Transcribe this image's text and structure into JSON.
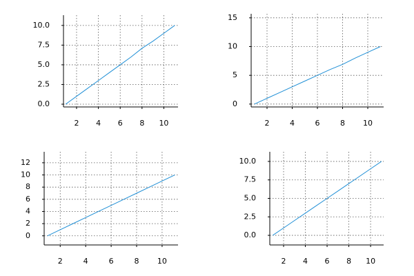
{
  "chart_data": [
    {
      "type": "line",
      "x": [
        1,
        2,
        3,
        4,
        5,
        6,
        7,
        8,
        9,
        10,
        11
      ],
      "series": [
        {
          "color": "#1f8fd6",
          "values": [
            0,
            1,
            2,
            3,
            4,
            5,
            6,
            7.1,
            8,
            9,
            10
          ]
        }
      ],
      "xlim": [
        0.8,
        11.3
      ],
      "ylim": [
        -0.35,
        11.3
      ],
      "xticks": [
        2,
        4,
        6,
        8,
        10
      ],
      "yticks": [
        {
          "value": 0,
          "label": "0.0"
        },
        {
          "value": 2.5,
          "label": "2.5"
        },
        {
          "value": 5,
          "label": "5.0"
        },
        {
          "value": 7.5,
          "label": "7.5"
        },
        {
          "value": 10,
          "label": "10.0"
        }
      ],
      "grid": true
    },
    {
      "type": "line",
      "x": [
        1,
        2,
        3,
        4,
        5,
        6,
        7,
        8,
        9,
        10,
        11
      ],
      "series": [
        {
          "color": "#1f8fd6",
          "values": [
            0,
            1,
            2,
            3,
            4,
            5,
            6,
            6.9,
            8,
            9,
            10
          ]
        }
      ],
      "xlim": [
        0.74,
        11.26
      ],
      "ylim": [
        -0.5,
        15.7
      ],
      "xticks": [
        2,
        4,
        6,
        8,
        10
      ],
      "yticks": [
        0,
        5,
        10,
        15
      ],
      "grid": true
    },
    {
      "type": "line",
      "x": [
        1,
        2,
        3,
        4,
        5,
        6,
        7,
        8,
        9,
        10,
        11
      ],
      "series": [
        {
          "color": "#1f8fd6",
          "values": [
            0,
            1,
            2,
            3,
            4,
            5,
            6,
            7,
            8,
            9,
            10
          ]
        }
      ],
      "xlim": [
        0.74,
        11.25
      ],
      "ylim": [
        -1.5,
        13.8
      ],
      "xticks": [
        2,
        4,
        6,
        8,
        10
      ],
      "yticks": [
        0,
        2,
        4,
        6,
        8,
        10,
        12
      ],
      "grid": true
    },
    {
      "type": "line",
      "x": [
        1,
        2,
        3,
        4,
        5,
        6,
        7,
        8,
        9,
        10,
        11
      ],
      "series": [
        {
          "color": "#1f8fd6",
          "values": [
            0,
            1,
            2,
            3,
            4,
            5,
            6,
            7,
            8,
            9,
            10
          ]
        }
      ],
      "xlim": [
        0.73,
        11.2
      ],
      "ylim": [
        -1.3,
        11.3
      ],
      "xticks": [
        2,
        4,
        6,
        8,
        10
      ],
      "yticks": [
        {
          "value": 0,
          "label": "0.0"
        },
        {
          "value": 2.5,
          "label": "2.5"
        },
        {
          "value": 5,
          "label": "5.0"
        },
        {
          "value": 7.5,
          "label": "7.5"
        },
        {
          "value": 10,
          "label": "10.0"
        }
      ],
      "grid": true
    }
  ]
}
